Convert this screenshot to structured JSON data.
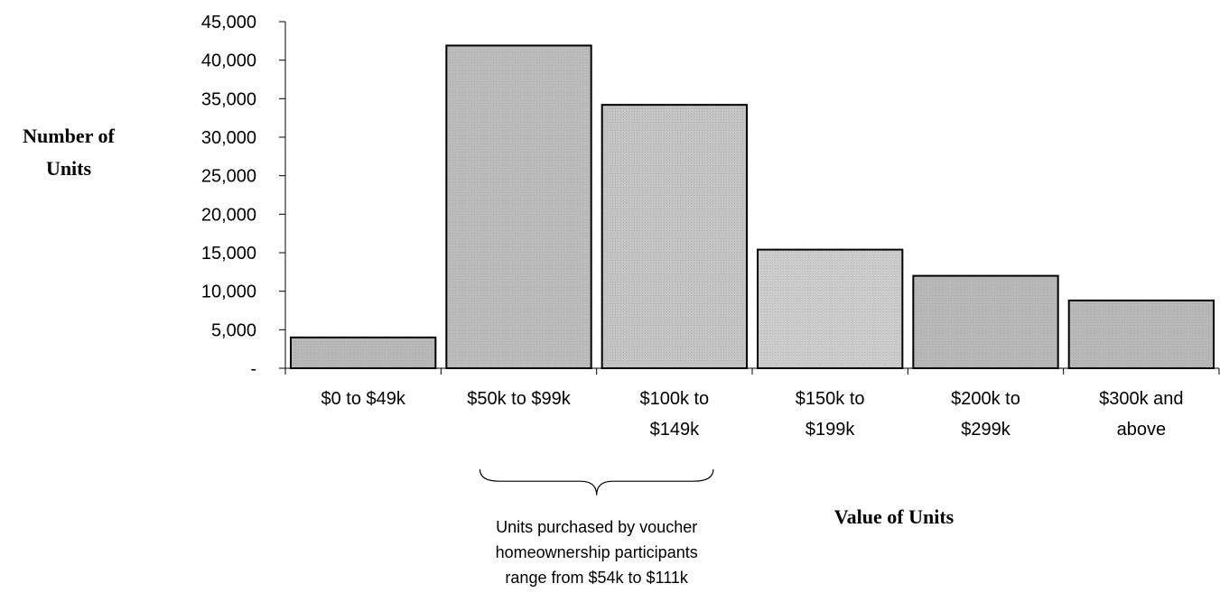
{
  "chart_data": {
    "type": "bar",
    "title": "",
    "ylabel_lines": [
      "Number of",
      "Units"
    ],
    "xlabel": "Value of Units",
    "ylim": [
      0,
      45000
    ],
    "yticks": [
      {
        "value": 0,
        "label": "-"
      },
      {
        "value": 5000,
        "label": "5,000"
      },
      {
        "value": 10000,
        "label": "10,000"
      },
      {
        "value": 15000,
        "label": "15,000"
      },
      {
        "value": 20000,
        "label": "20,000"
      },
      {
        "value": 25000,
        "label": "25,000"
      },
      {
        "value": 30000,
        "label": "30,000"
      },
      {
        "value": 35000,
        "label": "35,000"
      },
      {
        "value": 40000,
        "label": "40,000"
      },
      {
        "value": 45000,
        "label": "45,000"
      }
    ],
    "categories": [
      [
        "$0 to $49k"
      ],
      [
        "$50k to $99k"
      ],
      [
        "$100k to",
        "$149k"
      ],
      [
        "$150k to",
        "$199k"
      ],
      [
        "$200k to",
        "$299k"
      ],
      [
        "$300k and",
        "above"
      ]
    ],
    "values": [
      4000,
      41900,
      34200,
      15400,
      12000,
      8800
    ],
    "bar_colors": [
      "#b8b8b8",
      "#bcbcbc",
      "#c4c4c4",
      "#cccccc",
      "#b8b8b8",
      "#b8b8b8"
    ],
    "annotation": {
      "lines": [
        "Units purchased by voucher",
        "homeownership participants",
        "range from $54k to $111k"
      ],
      "bracket_from_category": 1,
      "bracket_to_category": 2
    }
  }
}
